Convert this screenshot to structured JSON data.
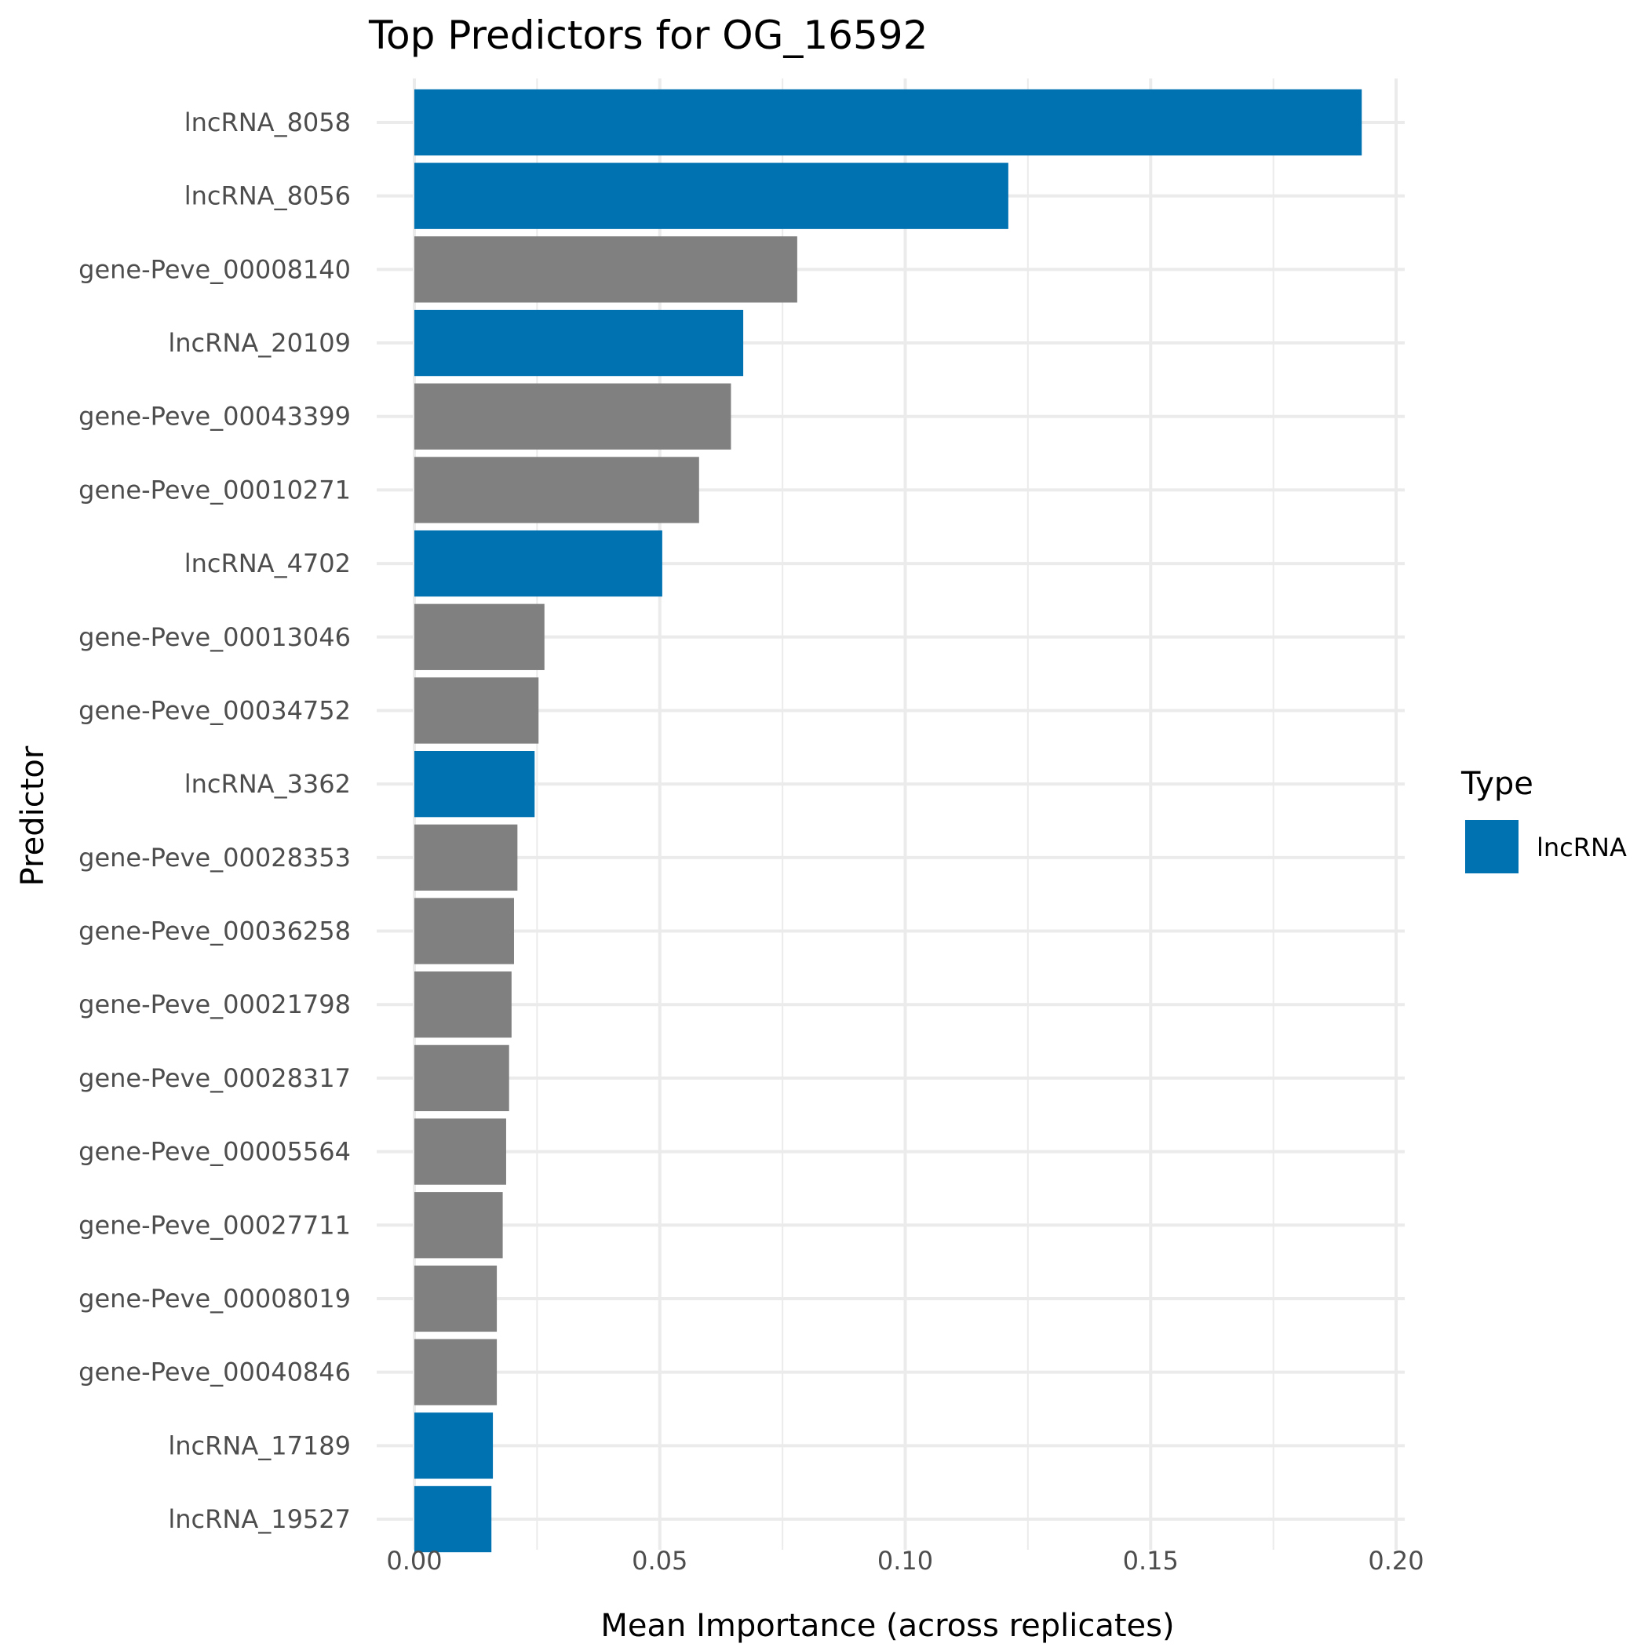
{
  "chart_data": {
    "type": "bar",
    "orientation": "horizontal",
    "title": "Top Predictors for OG_16592",
    "xlabel": "Mean Importance (across replicates)",
    "ylabel": "Predictor",
    "xlim": [
      0,
      0.2
    ],
    "x_ticks": [
      "0.00",
      "0.05",
      "0.10",
      "0.15",
      "0.20"
    ],
    "x_tick_values": [
      0,
      0.05,
      0.1,
      0.15,
      0.2
    ],
    "grid": true,
    "legend": {
      "title": "Type",
      "placement": "right",
      "entries": [
        {
          "label": "lncRNA",
          "color": "#0072B2"
        }
      ]
    },
    "colors": {
      "lncRNA": "#0072B2",
      "gene": "#808080"
    },
    "categories": [
      "lncRNA_8058",
      "lncRNA_8056",
      "gene-Peve_00008140",
      "lncRNA_20109",
      "gene-Peve_00043399",
      "gene-Peve_00010271",
      "lncRNA_4702",
      "gene-Peve_00013046",
      "gene-Peve_00034752",
      "lncRNA_3362",
      "gene-Peve_00028353",
      "gene-Peve_00036258",
      "gene-Peve_00021798",
      "gene-Peve_00028317",
      "gene-Peve_00005564",
      "gene-Peve_00027711",
      "gene-Peve_00008019",
      "gene-Peve_00040846",
      "lncRNA_17189",
      "lncRNA_19527"
    ],
    "values": [
      0.193,
      0.121,
      0.078,
      0.067,
      0.0645,
      0.058,
      0.0505,
      0.0265,
      0.0253,
      0.0245,
      0.021,
      0.0203,
      0.0198,
      0.0193,
      0.0187,
      0.018,
      0.0168,
      0.0168,
      0.016,
      0.0157
    ],
    "types": [
      "lncRNA",
      "lncRNA",
      "gene",
      "lncRNA",
      "gene",
      "gene",
      "lncRNA",
      "gene",
      "gene",
      "lncRNA",
      "gene",
      "gene",
      "gene",
      "gene",
      "gene",
      "gene",
      "gene",
      "gene",
      "lncRNA",
      "lncRNA"
    ]
  }
}
